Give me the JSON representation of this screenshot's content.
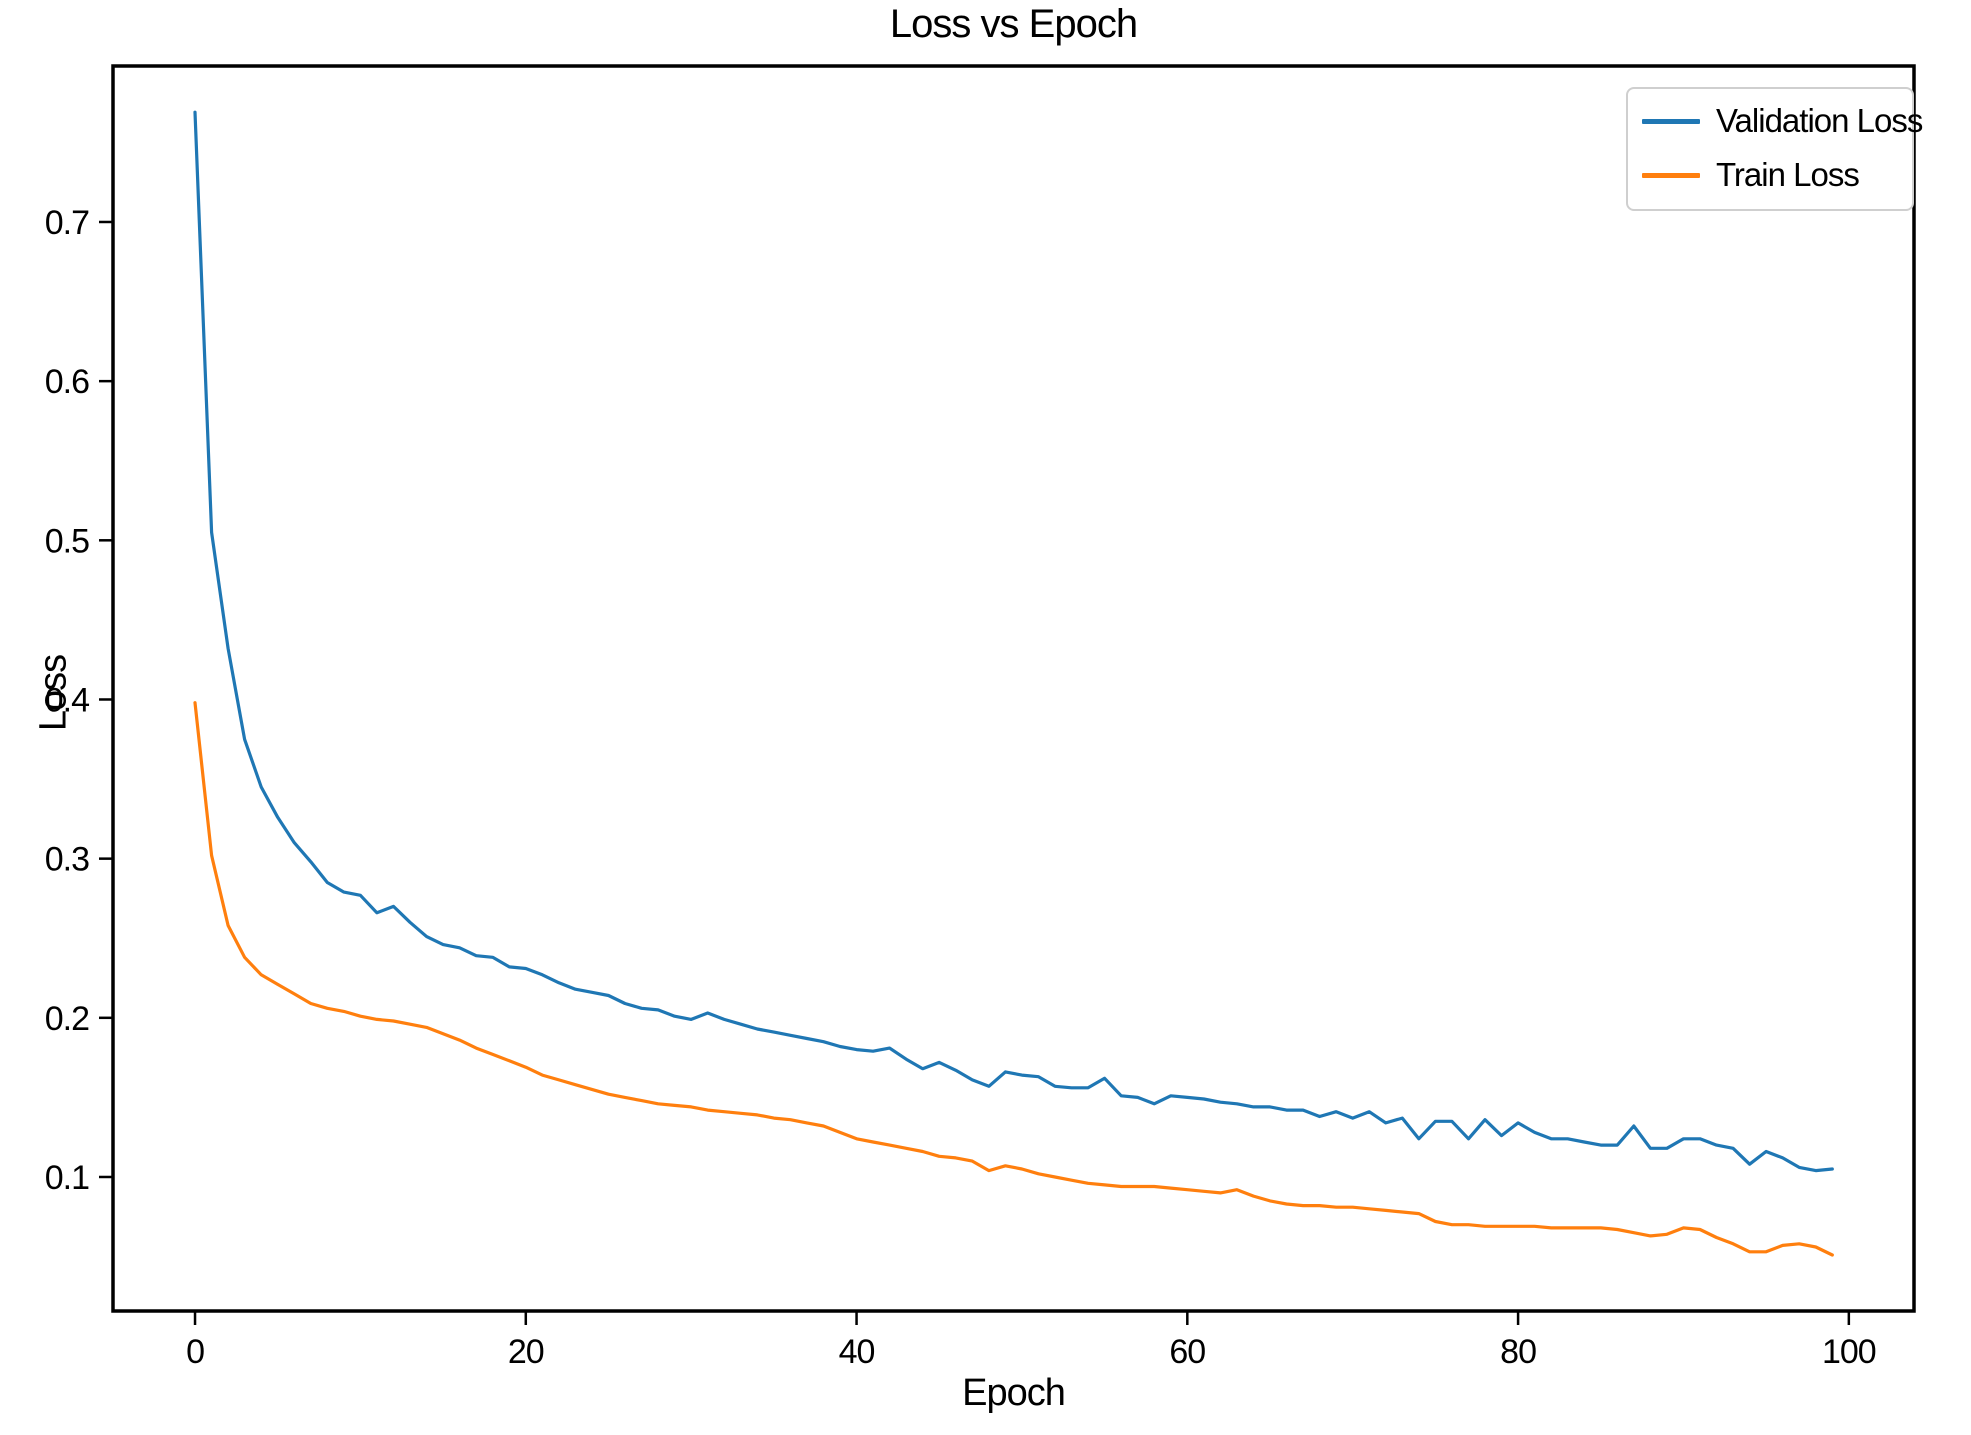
{
  "figure": {
    "background": "#ffffff",
    "spine_color": "#000000",
    "legend_border_color": "#cfcfcf"
  },
  "chart_data": {
    "type": "line",
    "title": "Loss vs Epoch",
    "xlabel": "Epoch",
    "ylabel": "Loss",
    "grid": false,
    "legend_position": "upper right",
    "xlim": [
      -4.96,
      103.94
    ],
    "ylim": [
      0.0158,
      0.798
    ],
    "xticks": {
      "values": [
        0,
        20,
        40,
        60,
        80,
        100
      ],
      "labels": [
        "0",
        "20",
        "40",
        "60",
        "80",
        "100"
      ]
    },
    "yticks": {
      "values": [
        0.1,
        0.2,
        0.3,
        0.4,
        0.5,
        0.6,
        0.7
      ],
      "labels": [
        "0.1",
        "0.2",
        "0.3",
        "0.4",
        "0.5",
        "0.6",
        "0.7"
      ]
    },
    "x": [
      0,
      1,
      2,
      3,
      4,
      5,
      6,
      7,
      8,
      9,
      10,
      11,
      12,
      13,
      14,
      15,
      16,
      17,
      18,
      19,
      20,
      21,
      22,
      23,
      24,
      25,
      26,
      27,
      28,
      29,
      30,
      31,
      32,
      33,
      34,
      35,
      36,
      37,
      38,
      39,
      40,
      41,
      42,
      43,
      44,
      45,
      46,
      47,
      48,
      49,
      50,
      51,
      52,
      53,
      54,
      55,
      56,
      57,
      58,
      59,
      60,
      61,
      62,
      63,
      64,
      65,
      66,
      67,
      68,
      69,
      70,
      71,
      72,
      73,
      74,
      75,
      76,
      77,
      78,
      79,
      80,
      81,
      82,
      83,
      84,
      85,
      86,
      87,
      88,
      89,
      90,
      91,
      92,
      93,
      94,
      95,
      96,
      97,
      98,
      99
    ],
    "series": [
      {
        "name": "Validation Loss",
        "color": "#1f77b4",
        "values": [
          0.769,
          0.505,
          0.432,
          0.375,
          0.345,
          0.326,
          0.31,
          0.298,
          0.285,
          0.279,
          0.277,
          0.266,
          0.27,
          0.26,
          0.251,
          0.246,
          0.244,
          0.239,
          0.238,
          0.232,
          0.231,
          0.227,
          0.222,
          0.218,
          0.216,
          0.214,
          0.209,
          0.206,
          0.205,
          0.201,
          0.199,
          0.203,
          0.199,
          0.196,
          0.193,
          0.191,
          0.189,
          0.187,
          0.185,
          0.182,
          0.18,
          0.179,
          0.181,
          0.174,
          0.168,
          0.172,
          0.167,
          0.161,
          0.157,
          0.166,
          0.164,
          0.163,
          0.157,
          0.156,
          0.156,
          0.162,
          0.151,
          0.15,
          0.146,
          0.151,
          0.15,
          0.149,
          0.147,
          0.146,
          0.144,
          0.144,
          0.142,
          0.142,
          0.138,
          0.141,
          0.137,
          0.141,
          0.134,
          0.137,
          0.124,
          0.135,
          0.135,
          0.124,
          0.136,
          0.126,
          0.134,
          0.128,
          0.124,
          0.124,
          0.122,
          0.12,
          0.12,
          0.132,
          0.118,
          0.118,
          0.124,
          0.124,
          0.12,
          0.118,
          0.108,
          0.116,
          0.112,
          0.106,
          0.104,
          0.105
        ]
      },
      {
        "name": "Train Loss",
        "color": "#ff7f0e",
        "values": [
          0.398,
          0.302,
          0.258,
          0.238,
          0.227,
          0.221,
          0.215,
          0.209,
          0.206,
          0.204,
          0.201,
          0.199,
          0.198,
          0.196,
          0.194,
          0.19,
          0.186,
          0.181,
          0.177,
          0.173,
          0.169,
          0.164,
          0.161,
          0.158,
          0.155,
          0.152,
          0.15,
          0.148,
          0.146,
          0.145,
          0.144,
          0.142,
          0.141,
          0.14,
          0.139,
          0.137,
          0.136,
          0.134,
          0.132,
          0.128,
          0.124,
          0.122,
          0.12,
          0.118,
          0.116,
          0.113,
          0.112,
          0.11,
          0.104,
          0.107,
          0.105,
          0.102,
          0.1,
          0.098,
          0.096,
          0.095,
          0.094,
          0.094,
          0.094,
          0.093,
          0.092,
          0.091,
          0.09,
          0.092,
          0.088,
          0.085,
          0.083,
          0.082,
          0.082,
          0.081,
          0.081,
          0.08,
          0.079,
          0.078,
          0.077,
          0.072,
          0.07,
          0.07,
          0.069,
          0.069,
          0.069,
          0.069,
          0.068,
          0.068,
          0.068,
          0.068,
          0.067,
          0.065,
          0.063,
          0.064,
          0.068,
          0.067,
          0.062,
          0.058,
          0.053,
          0.053,
          0.057,
          0.058,
          0.056,
          0.051
        ]
      }
    ]
  }
}
